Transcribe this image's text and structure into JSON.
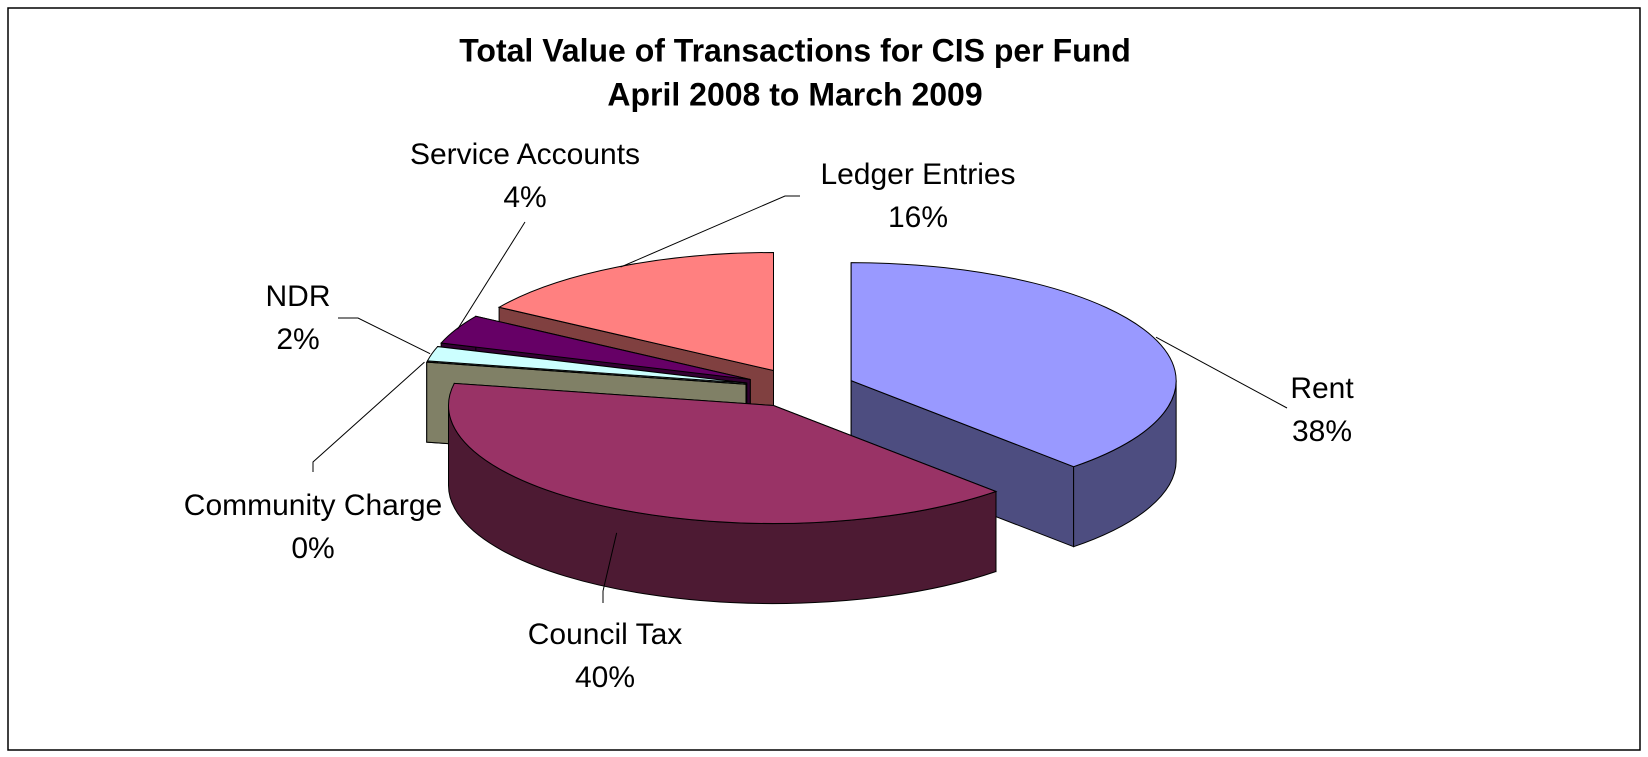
{
  "chart_data": {
    "type": "pie3d",
    "title": "Total Value of Transactions for CIS per Fund",
    "subtitle": "April 2008 to March 2009",
    "categories": [
      "Rent",
      "Council Tax",
      "Community Charge",
      "NDR",
      "Service Accounts",
      "Ledger Entries"
    ],
    "values": [
      38,
      40,
      0,
      2,
      4,
      16
    ],
    "value_labels": [
      "38%",
      "40%",
      "0%",
      "2%",
      "4%",
      "16%"
    ],
    "colors": [
      "#9999ff",
      "#993366",
      "#ffffcc",
      "#ccffff",
      "#660066",
      "#ff8080"
    ]
  }
}
